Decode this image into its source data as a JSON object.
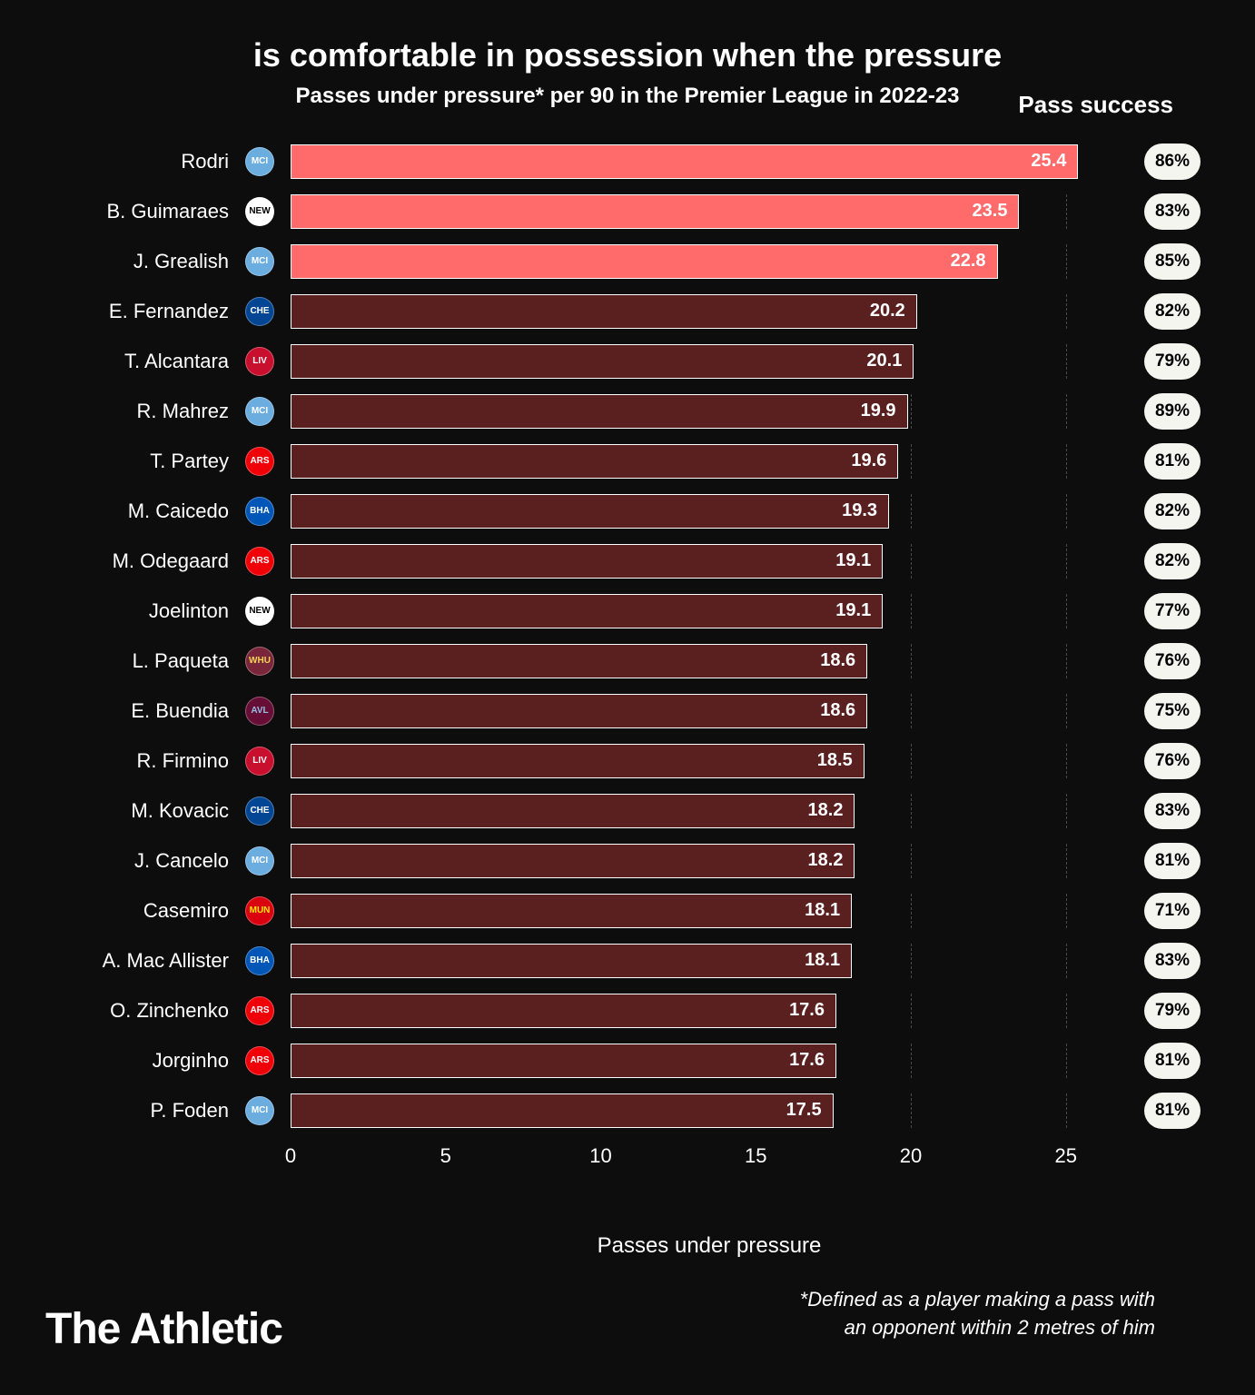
{
  "title": "is comfortable in possession when the pressure",
  "subtitle": "Passes under pressure* per 90 in the Premier League in 2022-23",
  "success_header": "Pass success",
  "x_axis_label": "Passes under pressure",
  "footnote_line1": "*Defined as a player making a pass with",
  "footnote_line2": "an opponent within 2 metres of him",
  "brand": "The Athletic",
  "chart": {
    "type": "bar",
    "xlim": [
      0,
      27
    ],
    "xticks": [
      0,
      5,
      10,
      15,
      20,
      25
    ],
    "xtick_labels": [
      "0",
      "5",
      "10",
      "15",
      "20",
      "25"
    ],
    "background_color": "#0d0d0d",
    "grid_color": "rgba(255,255,255,0.25)",
    "bar_border_color": "#ffffff",
    "value_fontsize": 20,
    "label_fontsize": 22,
    "highlight_color": "#ff6b6b",
    "dim_color": "#5a1f1f",
    "teams": {
      "MCI": {
        "bg": "#6caddf",
        "fg": "#ffffff",
        "label": "MCI"
      },
      "NEW": {
        "bg": "#ffffff",
        "fg": "#000000",
        "label": "NEW"
      },
      "CHE": {
        "bg": "#034694",
        "fg": "#ffffff",
        "label": "CHE"
      },
      "LIV": {
        "bg": "#c8102e",
        "fg": "#ffffff",
        "label": "LIV"
      },
      "ARS": {
        "bg": "#ef0107",
        "fg": "#ffffff",
        "label": "ARS"
      },
      "BHA": {
        "bg": "#0057b8",
        "fg": "#ffffff",
        "label": "BHA"
      },
      "WHU": {
        "bg": "#7a263a",
        "fg": "#f3d459",
        "label": "WHU"
      },
      "AVL": {
        "bg": "#670e36",
        "fg": "#95bfe5",
        "label": "AVL"
      },
      "MUN": {
        "bg": "#da020e",
        "fg": "#ffe500",
        "label": "MUN"
      }
    },
    "players": [
      {
        "name": "Rodri",
        "team": "MCI",
        "value": 25.4,
        "success": "86%",
        "highlight": true
      },
      {
        "name": "B. Guimaraes",
        "team": "NEW",
        "value": 23.5,
        "success": "83%",
        "highlight": true
      },
      {
        "name": "J. Grealish",
        "team": "MCI",
        "value": 22.8,
        "success": "85%",
        "highlight": true
      },
      {
        "name": "E. Fernandez",
        "team": "CHE",
        "value": 20.2,
        "success": "82%",
        "highlight": false
      },
      {
        "name": "T. Alcantara",
        "team": "LIV",
        "value": 20.1,
        "success": "79%",
        "highlight": false
      },
      {
        "name": "R. Mahrez",
        "team": "MCI",
        "value": 19.9,
        "success": "89%",
        "highlight": false
      },
      {
        "name": "T. Partey",
        "team": "ARS",
        "value": 19.6,
        "success": "81%",
        "highlight": false
      },
      {
        "name": "M. Caicedo",
        "team": "BHA",
        "value": 19.3,
        "success": "82%",
        "highlight": false
      },
      {
        "name": "M. Odegaard",
        "team": "ARS",
        "value": 19.1,
        "success": "82%",
        "highlight": false
      },
      {
        "name": "Joelinton",
        "team": "NEW",
        "value": 19.1,
        "success": "77%",
        "highlight": false
      },
      {
        "name": "L. Paqueta",
        "team": "WHU",
        "value": 18.6,
        "success": "76%",
        "highlight": false
      },
      {
        "name": "E. Buendia",
        "team": "AVL",
        "value": 18.6,
        "success": "75%",
        "highlight": false
      },
      {
        "name": "R. Firmino",
        "team": "LIV",
        "value": 18.5,
        "success": "76%",
        "highlight": false
      },
      {
        "name": "M. Kovacic",
        "team": "CHE",
        "value": 18.2,
        "success": "83%",
        "highlight": false
      },
      {
        "name": "J. Cancelo",
        "team": "MCI",
        "value": 18.2,
        "success": "81%",
        "highlight": false
      },
      {
        "name": "Casemiro",
        "team": "MUN",
        "value": 18.1,
        "success": "71%",
        "highlight": false
      },
      {
        "name": "A. Mac Allister",
        "team": "BHA",
        "value": 18.1,
        "success": "83%",
        "highlight": false
      },
      {
        "name": "O. Zinchenko",
        "team": "ARS",
        "value": 17.6,
        "success": "79%",
        "highlight": false
      },
      {
        "name": "Jorginho",
        "team": "ARS",
        "value": 17.6,
        "success": "81%",
        "highlight": false
      },
      {
        "name": "P. Foden",
        "team": "MCI",
        "value": 17.5,
        "success": "81%",
        "highlight": false
      }
    ]
  }
}
